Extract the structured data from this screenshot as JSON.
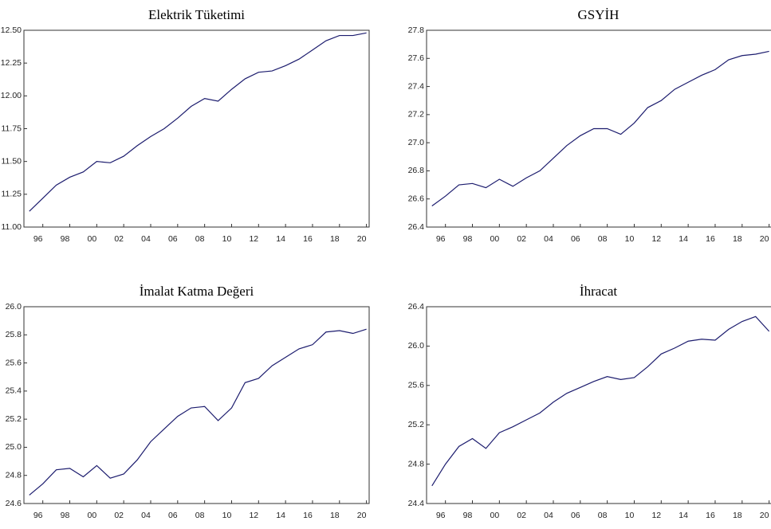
{
  "chart_data": [
    {
      "type": "line",
      "title": "Elektrik Tüketimi",
      "color": "#1c1c6e",
      "x": [
        1995,
        1996,
        1997,
        1998,
        1999,
        2000,
        2001,
        2002,
        2003,
        2004,
        2005,
        2006,
        2007,
        2008,
        2009,
        2010,
        2011,
        2012,
        2013,
        2014,
        2015,
        2016,
        2017,
        2018,
        2019,
        2020
      ],
      "values": [
        11.12,
        11.22,
        11.32,
        11.38,
        11.42,
        11.5,
        11.49,
        11.54,
        11.62,
        11.69,
        11.75,
        11.83,
        11.92,
        11.98,
        11.96,
        12.05,
        12.13,
        12.18,
        12.19,
        12.23,
        12.28,
        12.35,
        12.42,
        12.46,
        12.46,
        12.48
      ],
      "xlim": [
        1994.6,
        2020.2
      ],
      "xticks": [
        {
          "value": 1996,
          "label": "96"
        },
        {
          "value": 1998,
          "label": "98"
        },
        {
          "value": 2000,
          "label": "00"
        },
        {
          "value": 2002,
          "label": "02"
        },
        {
          "value": 2004,
          "label": "04"
        },
        {
          "value": 2006,
          "label": "06"
        },
        {
          "value": 2008,
          "label": "08"
        },
        {
          "value": 2010,
          "label": "10"
        },
        {
          "value": 2012,
          "label": "12"
        },
        {
          "value": 2014,
          "label": "14"
        },
        {
          "value": 2016,
          "label": "16"
        },
        {
          "value": 2018,
          "label": "18"
        },
        {
          "value": 2020,
          "label": "20"
        }
      ],
      "ylim": [
        11.0,
        12.5
      ],
      "yticks": [
        {
          "value": 11,
          "label": "11.00"
        },
        11.25,
        {
          "value": 11.5,
          "label": "11.50"
        },
        11.75,
        {
          "value": 12,
          "label": "12.00"
        },
        12.25,
        {
          "value": 12.5,
          "label": "12.50"
        }
      ]
    },
    {
      "type": "line",
      "title": "GSYİH",
      "color": "#1c1c6e",
      "x": [
        1995,
        1996,
        1997,
        1998,
        1999,
        2000,
        2001,
        2002,
        2003,
        2004,
        2005,
        2006,
        2007,
        2008,
        2009,
        2010,
        2011,
        2012,
        2013,
        2014,
        2015,
        2016,
        2017,
        2018,
        2019,
        2020
      ],
      "values": [
        26.55,
        26.62,
        26.7,
        26.71,
        26.68,
        26.74,
        26.69,
        26.75,
        26.8,
        26.89,
        26.98,
        27.05,
        27.1,
        27.1,
        27.06,
        27.14,
        27.25,
        27.3,
        27.38,
        27.43,
        27.48,
        27.52,
        27.59,
        27.62,
        27.63,
        27.65
      ],
      "xlim": [
        1994.6,
        2020.2
      ],
      "xticks": [
        {
          "value": 1996,
          "label": "96"
        },
        {
          "value": 1998,
          "label": "98"
        },
        {
          "value": 2000,
          "label": "00"
        },
        {
          "value": 2002,
          "label": "02"
        },
        {
          "value": 2004,
          "label": "04"
        },
        {
          "value": 2006,
          "label": "06"
        },
        {
          "value": 2008,
          "label": "08"
        },
        {
          "value": 2010,
          "label": "10"
        },
        {
          "value": 2012,
          "label": "12"
        },
        {
          "value": 2014,
          "label": "14"
        },
        {
          "value": 2016,
          "label": "16"
        },
        {
          "value": 2018,
          "label": "18"
        },
        {
          "value": 2020,
          "label": "20"
        }
      ],
      "ylim": [
        26.4,
        27.8
      ],
      "yticks": [
        26.4,
        26.6,
        26.8,
        {
          "value": 27,
          "label": "27.0"
        },
        27.2,
        27.4,
        27.6,
        27.8
      ]
    },
    {
      "type": "line",
      "title": "İmalat Katma Değeri",
      "color": "#1c1c6e",
      "x": [
        1995,
        1996,
        1997,
        1998,
        1999,
        2000,
        2001,
        2002,
        2003,
        2004,
        2005,
        2006,
        2007,
        2008,
        2009,
        2010,
        2011,
        2012,
        2013,
        2014,
        2015,
        2016,
        2017,
        2018,
        2019,
        2020
      ],
      "values": [
        24.66,
        24.74,
        24.84,
        24.85,
        24.79,
        24.87,
        24.78,
        24.81,
        24.91,
        25.04,
        25.13,
        25.22,
        25.28,
        25.29,
        25.19,
        25.28,
        25.46,
        25.49,
        25.58,
        25.64,
        25.7,
        25.73,
        25.82,
        25.83,
        25.81,
        25.84
      ],
      "xlim": [
        1994.6,
        2020.2
      ],
      "xticks": [
        {
          "value": 1996,
          "label": "96"
        },
        {
          "value": 1998,
          "label": "98"
        },
        {
          "value": 2000,
          "label": "00"
        },
        {
          "value": 2002,
          "label": "02"
        },
        {
          "value": 2004,
          "label": "04"
        },
        {
          "value": 2006,
          "label": "06"
        },
        {
          "value": 2008,
          "label": "08"
        },
        {
          "value": 2010,
          "label": "10"
        },
        {
          "value": 2012,
          "label": "12"
        },
        {
          "value": 2014,
          "label": "14"
        },
        {
          "value": 2016,
          "label": "16"
        },
        {
          "value": 2018,
          "label": "18"
        },
        {
          "value": 2020,
          "label": "20"
        }
      ],
      "ylim": [
        24.6,
        26.0
      ],
      "yticks": [
        24.6,
        24.8,
        {
          "value": 25,
          "label": "25.0"
        },
        25.2,
        25.4,
        25.6,
        25.8,
        {
          "value": 26,
          "label": "26.0"
        }
      ]
    },
    {
      "type": "line",
      "title": "İhracat",
      "color": "#1c1c6e",
      "x": [
        1995,
        1996,
        1997,
        1998,
        1999,
        2000,
        2001,
        2002,
        2003,
        2004,
        2005,
        2006,
        2007,
        2008,
        2009,
        2010,
        2011,
        2012,
        2013,
        2014,
        2015,
        2016,
        2017,
        2018,
        2019,
        2020
      ],
      "values": [
        24.58,
        24.8,
        24.98,
        25.06,
        24.96,
        25.12,
        25.18,
        25.25,
        25.32,
        25.43,
        25.52,
        25.58,
        25.64,
        25.69,
        25.66,
        25.68,
        25.79,
        25.92,
        25.98,
        26.05,
        26.07,
        26.06,
        26.17,
        26.25,
        26.3,
        26.15
      ],
      "xlim": [
        1994.6,
        2020.2
      ],
      "xticks": [
        {
          "value": 1996,
          "label": "96"
        },
        {
          "value": 1998,
          "label": "98"
        },
        {
          "value": 2000,
          "label": "00"
        },
        {
          "value": 2002,
          "label": "02"
        },
        {
          "value": 2004,
          "label": "04"
        },
        {
          "value": 2006,
          "label": "06"
        },
        {
          "value": 2008,
          "label": "08"
        },
        {
          "value": 2010,
          "label": "10"
        },
        {
          "value": 2012,
          "label": "12"
        },
        {
          "value": 2014,
          "label": "14"
        },
        {
          "value": 2016,
          "label": "16"
        },
        {
          "value": 2018,
          "label": "18"
        },
        {
          "value": 2020,
          "label": "20"
        }
      ],
      "ylim": [
        24.4,
        26.4
      ],
      "yticks": [
        24.4,
        24.8,
        25.2,
        25.6,
        {
          "value": 26,
          "label": "26.0"
        },
        26.4
      ]
    }
  ]
}
